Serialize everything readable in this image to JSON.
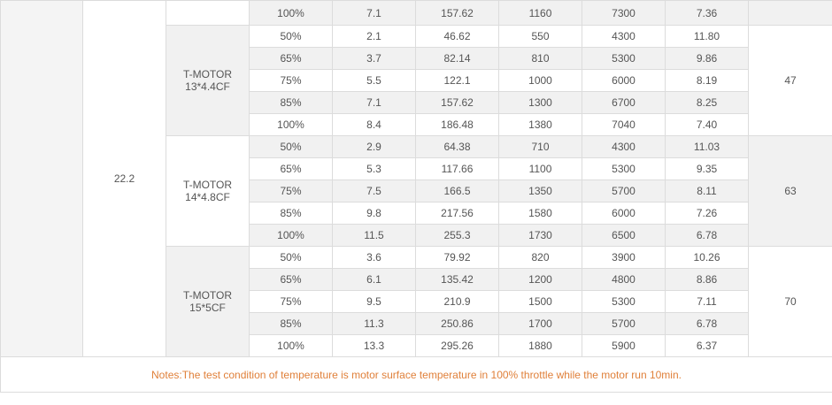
{
  "voltage": "22.2",
  "top_row": [
    "100%",
    "7.1",
    "157.62",
    "1160",
    "7300",
    "7.36"
  ],
  "groups": [
    {
      "prop": [
        "T-MOTOR",
        "13*4.4CF"
      ],
      "temperature": "47",
      "rows": [
        [
          "50%",
          "2.1",
          "46.62",
          "550",
          "4300",
          "11.80"
        ],
        [
          "65%",
          "3.7",
          "82.14",
          "810",
          "5300",
          "9.86"
        ],
        [
          "75%",
          "5.5",
          "122.1",
          "1000",
          "6000",
          "8.19"
        ],
        [
          "85%",
          "7.1",
          "157.62",
          "1300",
          "6700",
          "8.25"
        ],
        [
          "100%",
          "8.4",
          "186.48",
          "1380",
          "7040",
          "7.40"
        ]
      ]
    },
    {
      "prop": [
        "T-MOTOR",
        "14*4.8CF"
      ],
      "temperature": "63",
      "rows": [
        [
          "50%",
          "2.9",
          "64.38",
          "710",
          "4300",
          "11.03"
        ],
        [
          "65%",
          "5.3",
          "117.66",
          "1100",
          "5300",
          "9.35"
        ],
        [
          "75%",
          "7.5",
          "166.5",
          "1350",
          "5700",
          "8.11"
        ],
        [
          "85%",
          "9.8",
          "217.56",
          "1580",
          "6000",
          "7.26"
        ],
        [
          "100%",
          "11.5",
          "255.3",
          "1730",
          "6500",
          "6.78"
        ]
      ]
    },
    {
      "prop": [
        "T-MOTOR",
        "15*5CF"
      ],
      "temperature": "70",
      "rows": [
        [
          "50%",
          "3.6",
          "79.92",
          "820",
          "3900",
          "10.26"
        ],
        [
          "65%",
          "6.1",
          "135.42",
          "1200",
          "4800",
          "8.86"
        ],
        [
          "75%",
          "9.5",
          "210.9",
          "1500",
          "5300",
          "7.11"
        ],
        [
          "85%",
          "11.3",
          "250.86",
          "1700",
          "5700",
          "6.78"
        ],
        [
          "100%",
          "13.3",
          "295.26",
          "1880",
          "5900",
          "6.37"
        ]
      ]
    }
  ],
  "notes": "Notes:The test condition of temperature is motor surface temperature in 100% throttle while the motor run 10min."
}
